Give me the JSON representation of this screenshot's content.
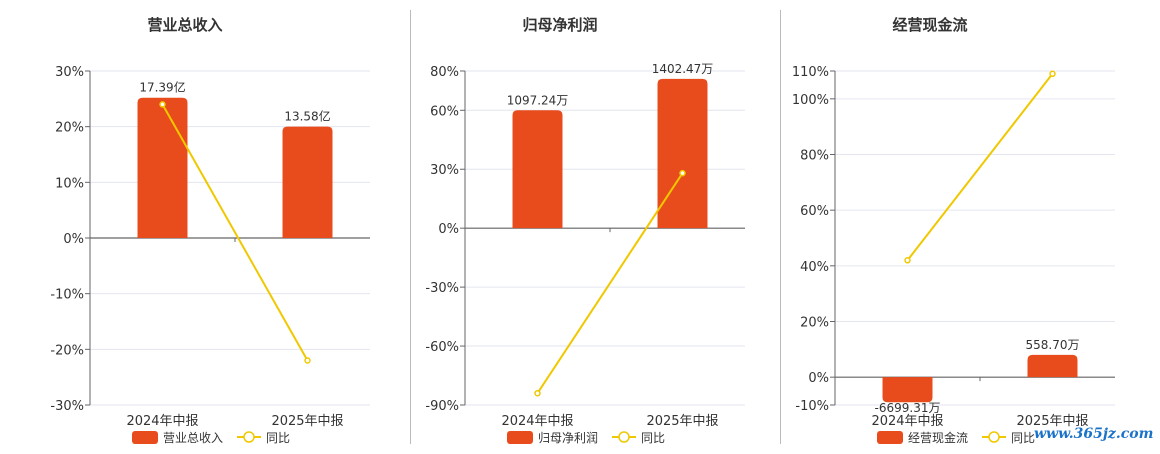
{
  "colors": {
    "bar": "#e84c1c",
    "line": "#f0c800",
    "grid": "#e3e6ef",
    "axis": "#666666"
  },
  "watermark": "www.365jz.com",
  "chart_data": [
    {
      "type": "bar",
      "title": "营业总收入",
      "categories": [
        "2024年中报",
        "2025年中报"
      ],
      "series": [
        {
          "name": "营业总收入",
          "type": "bar",
          "values": [
            25.2,
            20.0
          ],
          "labels": [
            "17.39亿",
            "13.58亿"
          ]
        },
        {
          "name": "同比",
          "type": "line",
          "values": [
            24,
            -22
          ]
        }
      ],
      "ylim": [
        -30,
        30
      ],
      "yticks": [
        30,
        20,
        10,
        0,
        -10,
        -20,
        -30
      ],
      "tick_suffix": "%",
      "grid": true,
      "legend_position": "bottom"
    },
    {
      "type": "bar",
      "title": "归母净利润",
      "categories": [
        "2024年中报",
        "2025年中报"
      ],
      "series": [
        {
          "name": "归母净利润",
          "type": "bar",
          "values": [
            60,
            76
          ],
          "labels": [
            "1097.24万",
            "1402.47万"
          ]
        },
        {
          "name": "同比",
          "type": "line",
          "values": [
            -84,
            28
          ]
        }
      ],
      "ylim": [
        -90,
        80
      ],
      "yticks": [
        80,
        60,
        30,
        0,
        -30,
        -60,
        -90
      ],
      "tick_suffix": "%",
      "grid": true,
      "legend_position": "bottom"
    },
    {
      "type": "bar",
      "title": "经营现金流",
      "categories": [
        "2024年中报",
        "2025年中报"
      ],
      "series": [
        {
          "name": "经营现金流",
          "type": "bar",
          "values": [
            -9,
            8
          ],
          "labels": [
            "-6699.31万",
            "558.70万"
          ]
        },
        {
          "name": "同比",
          "type": "line",
          "values": [
            42,
            109
          ]
        }
      ],
      "ylim": [
        -10,
        110
      ],
      "yticks": [
        110,
        100,
        80,
        60,
        40,
        20,
        0,
        -10
      ],
      "tick_suffix": "%",
      "grid": true,
      "legend_position": "bottom"
    }
  ]
}
